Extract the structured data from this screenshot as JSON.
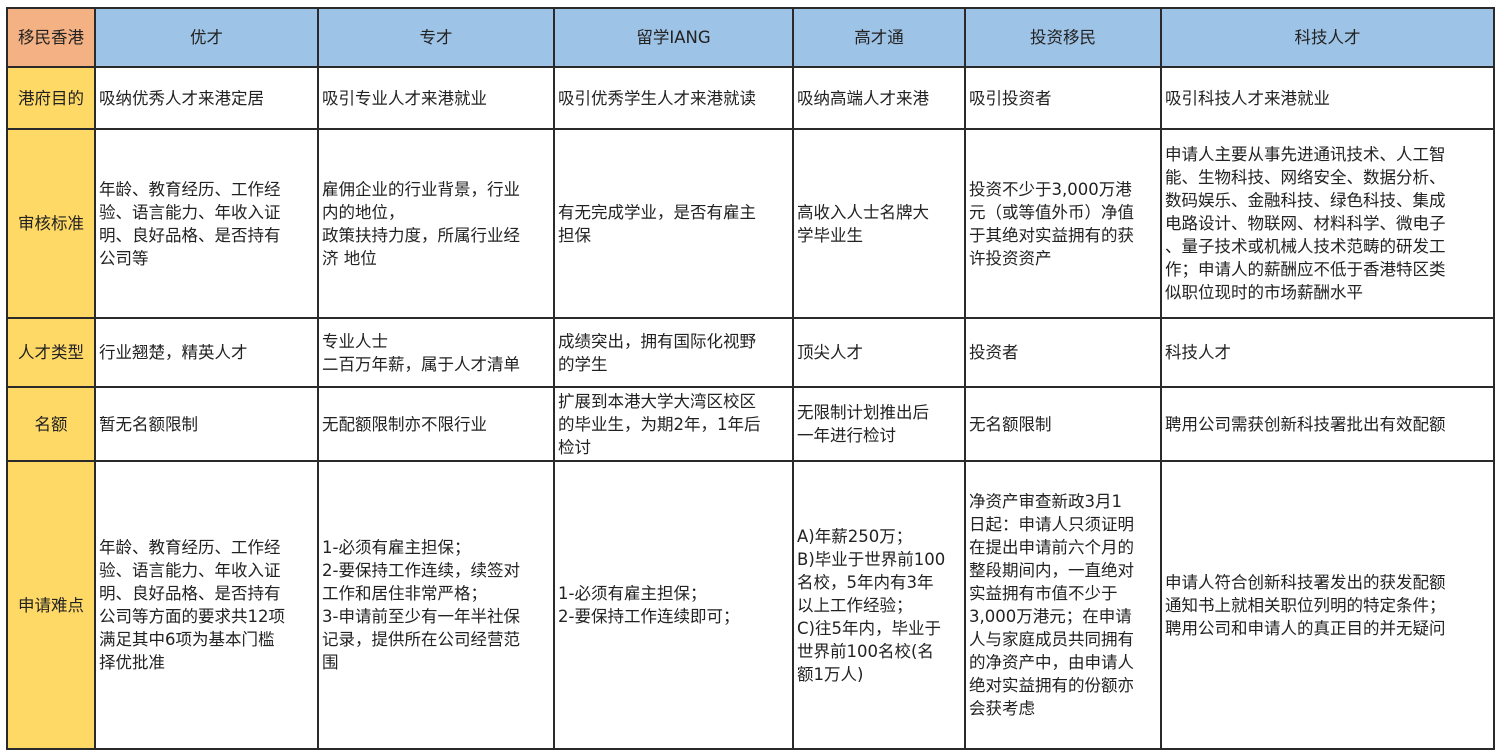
{
  "corner": "移民香港",
  "columns": [
    "优才",
    "专才",
    "留学IANG",
    "高才通",
    "投资移民",
    "科技人才"
  ],
  "rows": [
    {
      "label": "港府目的",
      "cells": [
        "吸纳优秀人才来港定居",
        "吸引专业人才来港就业",
        "吸引优秀学生人才来港就读",
        "吸纳高端人才来港",
        "吸引投资者",
        "吸引科技人才来港就业"
      ]
    },
    {
      "label": "审核标准",
      "cells": [
        "年龄、教育经历、工作经\n验、语言能力、年收入证\n明、良好品格、是否持有\n公司等",
        "雇佣企业的行业背景，行业\n内的地位，\n政策扶持力度，所属行业经\n济 地位",
        "有无完成学业，是否有雇主\n担保",
        "高收入人士名牌大\n学毕业生",
        "投资不少于3,000万港\n元（或等值外币）净值\n于其绝对实益拥有的获\n许投资资产",
        "申请人主要从事先进通讯技术、人工智\n能、生物科技、网络安全、数据分析、\n数码娱乐、金融科技、绿色科技、集成\n电路设计、物联网、材料科学、微电子\n、量子技术或机械人技术范畴的研发工\n作；申请人的薪酬应不低于香港特区类\n似职位现时的市场薪酬水平"
      ]
    },
    {
      "label": "人才类型",
      "cells": [
        "行业翘楚，精英人才",
        "专业人士\n二百万年薪，属于人才清单",
        "成绩突出，拥有国际化视野\n的学生",
        "顶尖人才",
        "投资者",
        "科技人才"
      ]
    },
    {
      "label": "名额",
      "cells": [
        "暂无名额限制",
        "无配额限制亦不限行业",
        "扩展到本港大学大湾区校区\n的毕业生，为期2年，1年后\n检讨",
        "无限制计划推出后\n一年进行检讨",
        "无名额限制",
        "聘用公司需获创新科技署批出有效配额"
      ]
    },
    {
      "label": "申请难点",
      "cells": [
        "年龄、教育经历、工作经\n验、语言能力、年收入证\n明、良好品格、是否持有\n公司等方面的要求共12项\n满足其中6项为基本门槛\n择优批准",
        "1-必须有雇主担保；\n2-要保持工作连续，续签对\n工作和居住非常严格；\n3-申请前至少有一年半社保\n记录，提供所在公司经营范\n围",
        "1-必须有雇主担保；\n2-要保持工作连续即可；",
        "A)年薪250万；\nB)毕业于世界前100\n名校，5年内有3年\n以上工作经验；\nC)往5年内，毕业于\n世界前100名校(名\n额1万人)",
        "净资产审查新政3月1\n日起：申请人只须证明\n在提出申请前六个月的\n整段期间内，一直绝对\n实益拥有市值不少于\n3,000万港元；在申请\n人与家庭成员共同拥有\n的净资产中，由申请人\n绝对实益拥有的份额亦\n会获考虑",
        "申请人符合创新科技署发出的获发配额\n通知书上就相关职位列明的特定条件；\n聘用公司和申请人的真正目的并无疑问"
      ]
    }
  ],
  "colors": {
    "corner": "#f4b183",
    "header": "#9dc3e6",
    "row_label": "#ffd966"
  }
}
